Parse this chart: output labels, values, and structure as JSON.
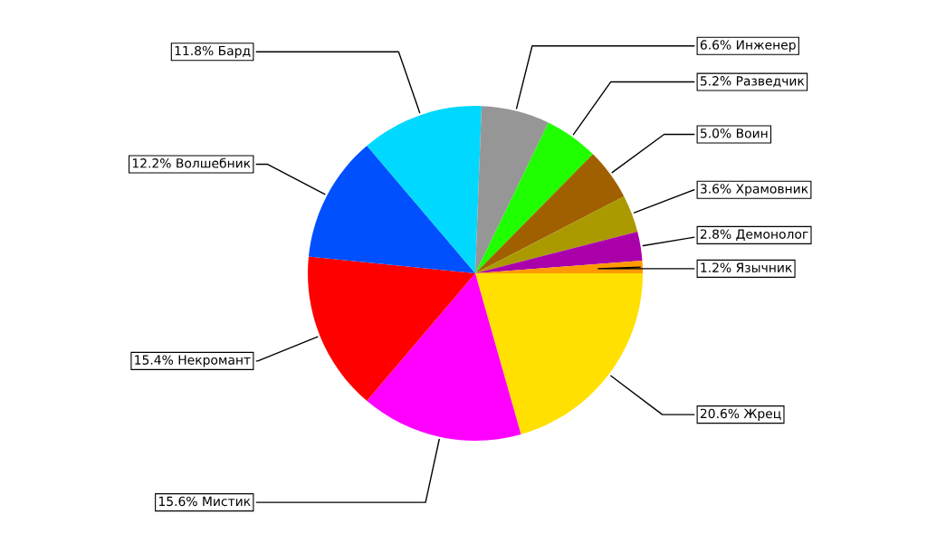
{
  "chart_data": {
    "type": "pie",
    "categories": [
      "Жрец",
      "Мистик",
      "Некромант",
      "Волшебник",
      "Бард",
      "Инженер",
      "Разведчик",
      "Воин",
      "Храмовник",
      "Демонолог",
      "Язычник"
    ],
    "values": [
      20.6,
      15.6,
      15.4,
      12.2,
      11.8,
      6.6,
      5.2,
      5.0,
      3.6,
      2.8,
      1.2
    ],
    "value_labels": [
      "20.6%",
      "15.6%",
      "15.4%",
      "12.2%",
      "11.8%",
      "6.6%",
      "5.2%",
      "5.0%",
      "3.6%",
      "2.8%",
      "1.2%"
    ],
    "colors": [
      "#ffe000",
      "#ff00ff",
      "#ff0000",
      "#0050ff",
      "#00d8ff",
      "#969696",
      "#20ff00",
      "#a06000",
      "#aa9a00",
      "#aa00aa",
      "#ff9a00"
    ]
  }
}
